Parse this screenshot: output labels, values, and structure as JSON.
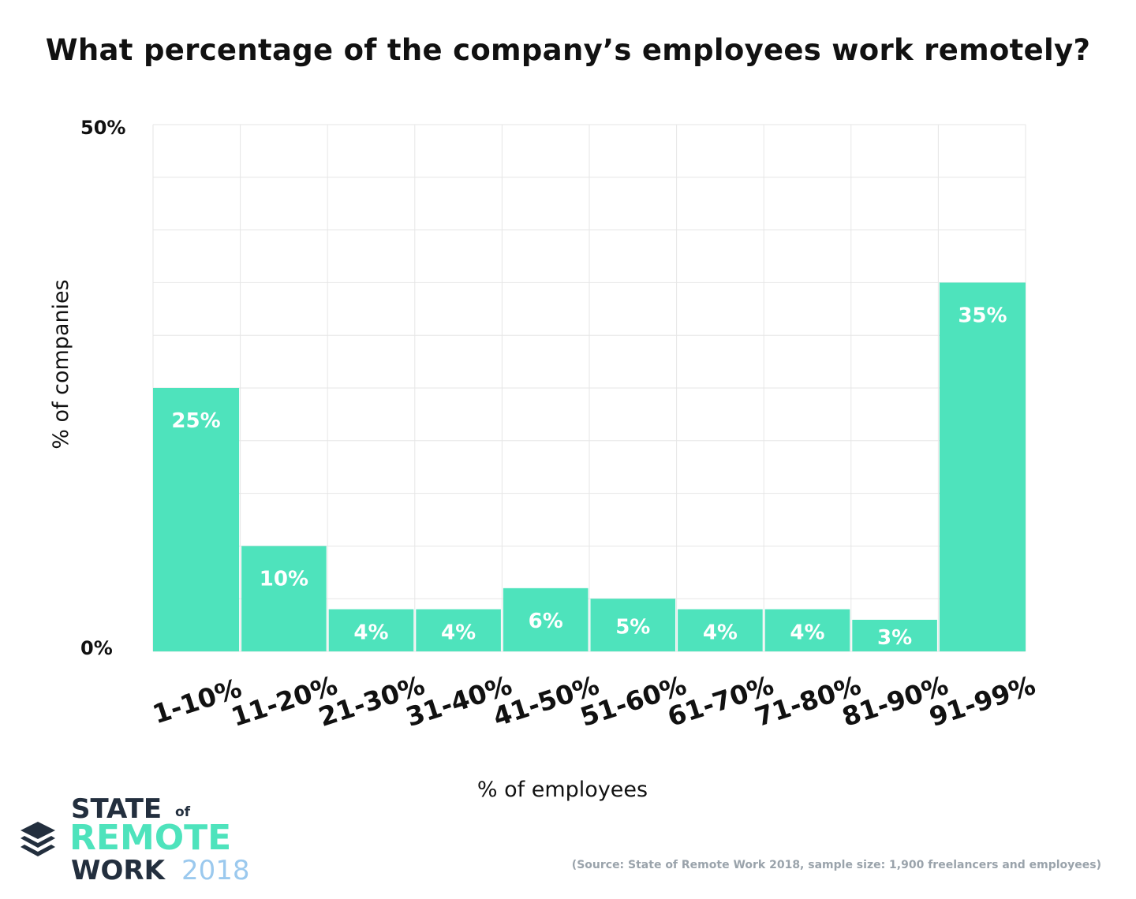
{
  "title": "What percentage of the company’s employees work remotely?",
  "chart_data": {
    "type": "bar",
    "title": "What percentage of the company’s employees work remotely?",
    "categories": [
      "1-10%",
      "11-20%",
      "21-30%",
      "31-40%",
      "41-50%",
      "51-60%",
      "61-70%",
      "71-80%",
      "81-90%",
      "91-99%"
    ],
    "values": [
      25,
      10,
      4,
      4,
      6,
      5,
      4,
      4,
      3,
      35
    ],
    "value_labels": [
      "25%",
      "10%",
      "4%",
      "4%",
      "6%",
      "5%",
      "4%",
      "4%",
      "3%",
      "35%"
    ],
    "xlabel": "% of employees",
    "ylabel": "% of companies",
    "ylim": [
      0,
      50
    ],
    "y_tick_labels": [
      "0%",
      "50%"
    ],
    "grid": true,
    "legend": "none",
    "bar_color": "#4ee3bc",
    "label_color": "#ffffff"
  },
  "source": "(Source: State of Remote Work 2018, sample size: 1,900 freelancers and employees)",
  "logo": {
    "line1": "STATE",
    "of": "of",
    "line2": "REMOTE",
    "line3": "WORK",
    "year": "2018",
    "icon": "layers-icon"
  }
}
